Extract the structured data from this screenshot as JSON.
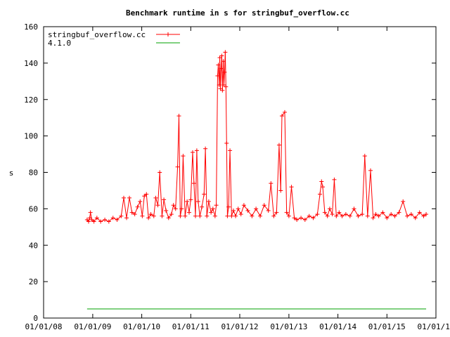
{
  "chart_data": {
    "type": "line",
    "title": "Benchmark runtime in s for stringbuf_overflow.cc",
    "xlabel": "",
    "ylabel": "s",
    "xlim": [
      "2008-01-01",
      "2016-01-01"
    ],
    "ylim": [
      0,
      160
    ],
    "yticks": [
      0,
      20,
      40,
      60,
      80,
      100,
      120,
      140,
      160
    ],
    "xticks": [
      "01/01/08",
      "01/01/09",
      "01/01/10",
      "01/01/11",
      "01/01/12",
      "01/01/13",
      "01/01/14",
      "01/01/15",
      "01/01/16"
    ],
    "grid": false,
    "legend_position": "top-left",
    "series": [
      {
        "name": "stringbuf_overflow.cc",
        "color": "#ff0000",
        "marker": "plus",
        "points": [
          [
            "2008-11-20",
            54
          ],
          [
            "2008-12-01",
            53
          ],
          [
            "2008-12-10",
            55
          ],
          [
            "2008-12-15",
            58
          ],
          [
            "2008-12-25",
            54
          ],
          [
            "2009-01-10",
            53
          ],
          [
            "2009-02-01",
            55
          ],
          [
            "2009-03-01",
            53
          ],
          [
            "2009-04-01",
            54
          ],
          [
            "2009-05-01",
            53
          ],
          [
            "2009-06-01",
            55
          ],
          [
            "2009-07-01",
            54
          ],
          [
            "2009-08-01",
            56
          ],
          [
            "2009-08-20",
            66
          ],
          [
            "2009-09-10",
            55
          ],
          [
            "2009-10-01",
            66
          ],
          [
            "2009-10-20",
            58
          ],
          [
            "2009-11-10",
            57
          ],
          [
            "2009-12-01",
            61
          ],
          [
            "2009-12-20",
            64
          ],
          [
            "2010-01-05",
            56
          ],
          [
            "2010-01-20",
            67
          ],
          [
            "2010-02-05",
            68
          ],
          [
            "2010-02-20",
            55
          ],
          [
            "2010-03-10",
            57
          ],
          [
            "2010-04-01",
            56
          ],
          [
            "2010-04-15",
            66
          ],
          [
            "2010-05-01",
            62
          ],
          [
            "2010-05-15",
            80
          ],
          [
            "2010-06-01",
            56
          ],
          [
            "2010-06-15",
            65
          ],
          [
            "2010-07-01",
            59
          ],
          [
            "2010-07-20",
            55
          ],
          [
            "2010-08-10",
            57
          ],
          [
            "2010-08-25",
            62
          ],
          [
            "2010-09-10",
            60
          ],
          [
            "2010-09-25",
            83
          ],
          [
            "2010-10-05",
            111
          ],
          [
            "2010-10-15",
            56
          ],
          [
            "2010-10-25",
            60
          ],
          [
            "2010-11-05",
            89
          ],
          [
            "2010-11-20",
            56
          ],
          [
            "2010-12-05",
            64
          ],
          [
            "2010-12-20",
            58
          ],
          [
            "2011-01-01",
            65
          ],
          [
            "2011-01-15",
            91
          ],
          [
            "2011-01-25",
            74
          ],
          [
            "2011-02-05",
            56
          ],
          [
            "2011-02-15",
            92
          ],
          [
            "2011-02-25",
            64
          ],
          [
            "2011-03-10",
            56
          ],
          [
            "2011-03-25",
            61
          ],
          [
            "2011-04-10",
            68
          ],
          [
            "2011-04-20",
            93
          ],
          [
            "2011-05-01",
            56
          ],
          [
            "2011-05-15",
            64
          ],
          [
            "2011-06-01",
            58
          ],
          [
            "2011-06-15",
            60
          ],
          [
            "2011-07-01",
            56
          ],
          [
            "2011-07-10",
            62
          ],
          [
            "2011-07-20",
            133
          ],
          [
            "2011-07-25",
            139
          ],
          [
            "2011-08-01",
            128
          ],
          [
            "2011-08-05",
            143
          ],
          [
            "2011-08-10",
            126
          ],
          [
            "2011-08-15",
            137
          ],
          [
            "2011-08-20",
            144
          ],
          [
            "2011-08-25",
            125
          ],
          [
            "2011-09-01",
            141
          ],
          [
            "2011-09-05",
            128
          ],
          [
            "2011-09-10",
            135
          ],
          [
            "2011-09-15",
            146
          ],
          [
            "2011-09-20",
            127
          ],
          [
            "2011-09-25",
            96
          ],
          [
            "2011-10-01",
            56
          ],
          [
            "2011-10-10",
            61
          ],
          [
            "2011-10-20",
            92
          ],
          [
            "2011-11-01",
            56
          ],
          [
            "2011-11-15",
            59
          ],
          [
            "2011-12-01",
            56
          ],
          [
            "2011-12-20",
            60
          ],
          [
            "2012-01-10",
            57
          ],
          [
            "2012-02-01",
            62
          ],
          [
            "2012-03-01",
            59
          ],
          [
            "2012-04-01",
            56
          ],
          [
            "2012-05-01",
            60
          ],
          [
            "2012-06-01",
            56
          ],
          [
            "2012-07-01",
            62
          ],
          [
            "2012-08-01",
            59
          ],
          [
            "2012-08-20",
            74
          ],
          [
            "2012-09-10",
            56
          ],
          [
            "2012-10-01",
            58
          ],
          [
            "2012-10-20",
            95
          ],
          [
            "2012-11-01",
            70
          ],
          [
            "2012-11-10",
            111
          ],
          [
            "2012-12-01",
            113
          ],
          [
            "2012-12-15",
            58
          ],
          [
            "2013-01-01",
            56
          ],
          [
            "2013-01-20",
            72
          ],
          [
            "2013-02-10",
            55
          ],
          [
            "2013-03-01",
            54
          ],
          [
            "2013-04-01",
            55
          ],
          [
            "2013-05-01",
            54
          ],
          [
            "2013-06-01",
            56
          ],
          [
            "2013-07-01",
            55
          ],
          [
            "2013-08-01",
            57
          ],
          [
            "2013-08-20",
            68
          ],
          [
            "2013-09-01",
            75
          ],
          [
            "2013-09-10",
            72
          ],
          [
            "2013-09-25",
            58
          ],
          [
            "2013-10-15",
            56
          ],
          [
            "2013-11-01",
            60
          ],
          [
            "2013-11-20",
            57
          ],
          [
            "2013-12-05",
            76
          ],
          [
            "2013-12-20",
            56
          ],
          [
            "2014-01-10",
            58
          ],
          [
            "2014-02-01",
            56
          ],
          [
            "2014-03-01",
            57
          ],
          [
            "2014-04-01",
            56
          ],
          [
            "2014-05-01",
            60
          ],
          [
            "2014-06-01",
            56
          ],
          [
            "2014-07-01",
            57
          ],
          [
            "2014-07-20",
            89
          ],
          [
            "2014-08-10",
            56
          ],
          [
            "2014-09-01",
            81
          ],
          [
            "2014-09-20",
            55
          ],
          [
            "2014-10-10",
            57
          ],
          [
            "2014-11-01",
            56
          ],
          [
            "2014-12-01",
            58
          ],
          [
            "2015-01-01",
            55
          ],
          [
            "2015-02-01",
            57
          ],
          [
            "2015-03-01",
            56
          ],
          [
            "2015-04-01",
            58
          ],
          [
            "2015-05-01",
            64
          ],
          [
            "2015-06-01",
            56
          ],
          [
            "2015-07-01",
            57
          ],
          [
            "2015-08-01",
            55
          ],
          [
            "2015-09-01",
            58
          ],
          [
            "2015-10-01",
            56
          ],
          [
            "2015-10-20",
            57
          ]
        ]
      },
      {
        "name": "4.1.0",
        "color": "#00a000",
        "marker": "none",
        "points": [
          [
            "2008-11-20",
            5
          ],
          [
            "2015-10-20",
            5
          ]
        ]
      }
    ]
  }
}
